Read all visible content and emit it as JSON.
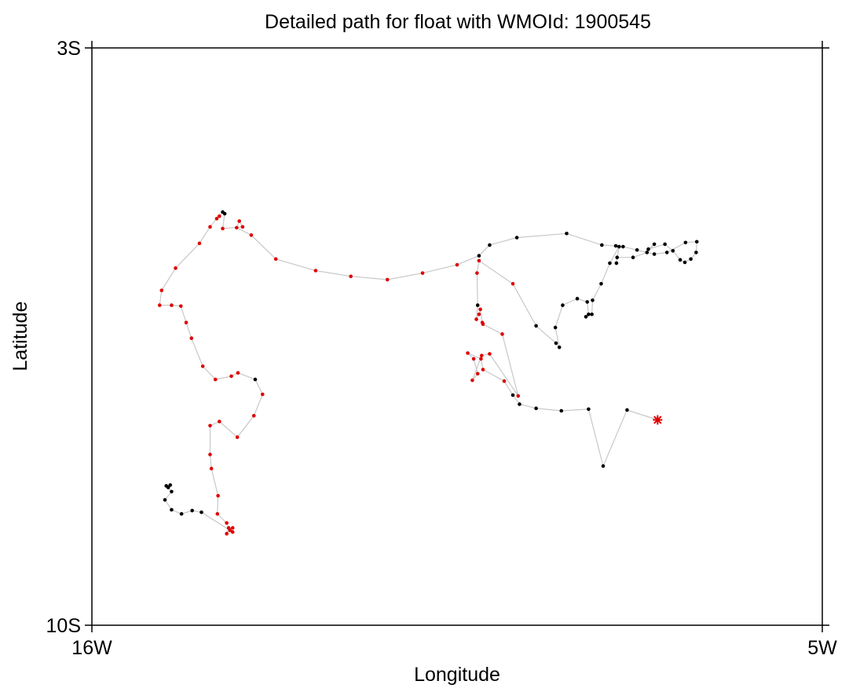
{
  "chart_data": {
    "type": "scatter",
    "title": "Detailed path for float with WMOId: 1900545",
    "xlabel": "Longitude",
    "ylabel": "Latitude",
    "xlim": [
      -16,
      -5
    ],
    "ylim": [
      -10,
      -3
    ],
    "x_ticks": [
      {
        "value": -16,
        "label": "16W"
      },
      {
        "value": -5,
        "label": "5W"
      }
    ],
    "y_ticks": [
      {
        "value": -3,
        "label": "3S"
      },
      {
        "value": -10,
        "label": "10S"
      }
    ],
    "grid": false,
    "legend": "none",
    "track_color": "#c8c8c8",
    "colors": {
      "black": "#000000",
      "red": "#e00000"
    },
    "points": [
      {
        "x": -7.48,
        "y": -7.51,
        "c": "red",
        "m": "star"
      },
      {
        "x": -7.94,
        "y": -7.39,
        "c": "black"
      },
      {
        "x": -8.3,
        "y": -8.07,
        "c": "black"
      },
      {
        "x": -8.52,
        "y": -7.38,
        "c": "black"
      },
      {
        "x": -8.93,
        "y": -7.4,
        "c": "black"
      },
      {
        "x": -9.31,
        "y": -7.37,
        "c": "black"
      },
      {
        "x": -9.56,
        "y": -7.32,
        "c": "black"
      },
      {
        "x": -9.66,
        "y": -7.21,
        "c": "black"
      },
      {
        "x": -9.79,
        "y": -7.04,
        "c": "red"
      },
      {
        "x": -10.11,
        "y": -6.9,
        "c": "red"
      },
      {
        "x": -10.14,
        "y": -6.77,
        "c": "red"
      },
      {
        "x": -10.34,
        "y": -6.7,
        "c": "red"
      },
      {
        "x": -10.25,
        "y": -6.77,
        "c": "red"
      },
      {
        "x": -10.19,
        "y": -6.95,
        "c": "red"
      },
      {
        "x": -10.27,
        "y": -7.03,
        "c": "red"
      },
      {
        "x": -10.13,
        "y": -6.73,
        "c": "red"
      },
      {
        "x": -10.01,
        "y": -6.71,
        "c": "red"
      },
      {
        "x": -9.58,
        "y": -7.22,
        "c": "red"
      },
      {
        "x": -9.82,
        "y": -6.47,
        "c": "red"
      },
      {
        "x": -10.11,
        "y": -6.35,
        "c": "red"
      },
      {
        "x": -10.12,
        "y": -6.33,
        "c": "red"
      },
      {
        "x": -10.15,
        "y": -6.17,
        "c": "red"
      },
      {
        "x": -10.17,
        "y": -6.23,
        "c": "red"
      },
      {
        "x": -10.21,
        "y": -6.29,
        "c": "red"
      },
      {
        "x": -10.19,
        "y": -6.12,
        "c": "black"
      },
      {
        "x": -10.2,
        "y": -5.73,
        "c": "red"
      },
      {
        "x": -10.17,
        "y": -5.58,
        "c": "red"
      },
      {
        "x": -9.66,
        "y": -5.86,
        "c": "red"
      },
      {
        "x": -9.31,
        "y": -6.37,
        "c": "black"
      },
      {
        "x": -9.01,
        "y": -6.58,
        "c": "black"
      },
      {
        "x": -8.96,
        "y": -6.63,
        "c": "black"
      },
      {
        "x": -9.02,
        "y": -6.39,
        "c": "black"
      },
      {
        "x": -8.91,
        "y": -6.12,
        "c": "black"
      },
      {
        "x": -8.69,
        "y": -6.04,
        "c": "black"
      },
      {
        "x": -8.54,
        "y": -6.08,
        "c": "black"
      },
      {
        "x": -8.52,
        "y": -6.23,
        "c": "black"
      },
      {
        "x": -8.56,
        "y": -6.26,
        "c": "black"
      },
      {
        "x": -8.47,
        "y": -6.23,
        "c": "black"
      },
      {
        "x": -8.46,
        "y": -6.06,
        "c": "black"
      },
      {
        "x": -8.33,
        "y": -5.86,
        "c": "black"
      },
      {
        "x": -8.2,
        "y": -5.61,
        "c": "black"
      },
      {
        "x": -8.06,
        "y": -5.41,
        "c": "black"
      },
      {
        "x": -8.1,
        "y": -5.61,
        "c": "black"
      },
      {
        "x": -8.09,
        "y": -5.54,
        "c": "black"
      },
      {
        "x": -7.85,
        "y": -5.54,
        "c": "black"
      },
      {
        "x": -7.64,
        "y": -5.48,
        "c": "black"
      },
      {
        "x": -7.53,
        "y": -5.38,
        "c": "black"
      },
      {
        "x": -7.62,
        "y": -5.44,
        "c": "black"
      },
      {
        "x": -7.37,
        "y": -5.38,
        "c": "black"
      },
      {
        "x": -7.25,
        "y": -5.46,
        "c": "black"
      },
      {
        "x": -7.14,
        "y": -5.57,
        "c": "black"
      },
      {
        "x": -7.07,
        "y": -5.6,
        "c": "black"
      },
      {
        "x": -6.98,
        "y": -5.56,
        "c": "black"
      },
      {
        "x": -6.9,
        "y": -5.48,
        "c": "black"
      },
      {
        "x": -6.89,
        "y": -5.35,
        "c": "black"
      },
      {
        "x": -7.06,
        "y": -5.36,
        "c": "black"
      },
      {
        "x": -7.34,
        "y": -5.48,
        "c": "black"
      },
      {
        "x": -7.53,
        "y": -5.5,
        "c": "black"
      },
      {
        "x": -7.79,
        "y": -5.45,
        "c": "black"
      },
      {
        "x": -8.0,
        "y": -5.41,
        "c": "black"
      },
      {
        "x": -8.11,
        "y": -5.4,
        "c": "black"
      },
      {
        "x": -8.32,
        "y": -5.39,
        "c": "black"
      },
      {
        "x": -8.85,
        "y": -5.25,
        "c": "black"
      },
      {
        "x": -9.6,
        "y": -5.3,
        "c": "black"
      },
      {
        "x": -10.01,
        "y": -5.39,
        "c": "black"
      },
      {
        "x": -10.17,
        "y": -5.52,
        "c": "black"
      },
      {
        "x": -10.5,
        "y": -5.63,
        "c": "red"
      },
      {
        "x": -11.02,
        "y": -5.73,
        "c": "red"
      },
      {
        "x": -11.55,
        "y": -5.81,
        "c": "red"
      },
      {
        "x": -12.1,
        "y": -5.77,
        "c": "red"
      },
      {
        "x": -12.63,
        "y": -5.7,
        "c": "red"
      },
      {
        "x": -13.23,
        "y": -5.56,
        "c": "red"
      },
      {
        "x": -13.6,
        "y": -5.27,
        "c": "red"
      },
      {
        "x": -13.82,
        "y": -5.18,
        "c": "red"
      },
      {
        "x": -13.78,
        "y": -5.1,
        "c": "red"
      },
      {
        "x": -13.73,
        "y": -5.17,
        "c": "red"
      },
      {
        "x": -14.03,
        "y": -5.19,
        "c": "red"
      },
      {
        "x": -14.0,
        "y": -5.01,
        "c": "black"
      },
      {
        "x": -14.03,
        "y": -4.99,
        "c": "black"
      },
      {
        "x": -14.08,
        "y": -5.04,
        "c": "red"
      },
      {
        "x": -14.12,
        "y": -5.07,
        "c": "red"
      },
      {
        "x": -14.22,
        "y": -5.17,
        "c": "red"
      },
      {
        "x": -14.38,
        "y": -5.37,
        "c": "red"
      },
      {
        "x": -14.74,
        "y": -5.67,
        "c": "red"
      },
      {
        "x": -14.95,
        "y": -5.94,
        "c": "red"
      },
      {
        "x": -14.98,
        "y": -6.12,
        "c": "red"
      },
      {
        "x": -14.8,
        "y": -6.12,
        "c": "red"
      },
      {
        "x": -14.66,
        "y": -6.13,
        "c": "red"
      },
      {
        "x": -14.58,
        "y": -6.33,
        "c": "red"
      },
      {
        "x": -14.5,
        "y": -6.52,
        "c": "red"
      },
      {
        "x": -14.33,
        "y": -6.86,
        "c": "red"
      },
      {
        "x": -14.14,
        "y": -7.02,
        "c": "red"
      },
      {
        "x": -13.9,
        "y": -6.98,
        "c": "red"
      },
      {
        "x": -13.8,
        "y": -6.94,
        "c": "red"
      },
      {
        "x": -13.54,
        "y": -7.02,
        "c": "black"
      },
      {
        "x": -13.43,
        "y": -7.2,
        "c": "red"
      },
      {
        "x": -13.56,
        "y": -7.46,
        "c": "red"
      },
      {
        "x": -13.81,
        "y": -7.72,
        "c": "red"
      },
      {
        "x": -14.08,
        "y": -7.53,
        "c": "red"
      },
      {
        "x": -14.22,
        "y": -7.58,
        "c": "red"
      },
      {
        "x": -14.22,
        "y": -7.93,
        "c": "red"
      },
      {
        "x": -14.2,
        "y": -8.1,
        "c": "red"
      },
      {
        "x": -14.1,
        "y": -8.43,
        "c": "red"
      },
      {
        "x": -14.11,
        "y": -8.65,
        "c": "red"
      },
      {
        "x": -13.97,
        "y": -8.76,
        "c": "red"
      },
      {
        "x": -13.92,
        "y": -8.85,
        "c": "red"
      },
      {
        "x": -13.97,
        "y": -8.89,
        "c": "red"
      },
      {
        "x": -13.94,
        "y": -8.82,
        "c": "red"
      },
      {
        "x": -13.88,
        "y": -8.82,
        "c": "red"
      },
      {
        "x": -13.88,
        "y": -8.87,
        "c": "red"
      },
      {
        "x": -14.35,
        "y": -8.63,
        "c": "black"
      },
      {
        "x": -14.49,
        "y": -8.61,
        "c": "black"
      },
      {
        "x": -14.65,
        "y": -8.65,
        "c": "black"
      },
      {
        "x": -14.8,
        "y": -8.6,
        "c": "black"
      },
      {
        "x": -14.9,
        "y": -8.48,
        "c": "black"
      },
      {
        "x": -14.8,
        "y": -8.38,
        "c": "black"
      },
      {
        "x": -14.85,
        "y": -8.33,
        "c": "black"
      },
      {
        "x": -14.88,
        "y": -8.31,
        "c": "black"
      },
      {
        "x": -14.82,
        "y": -8.3,
        "c": "black"
      }
    ]
  }
}
